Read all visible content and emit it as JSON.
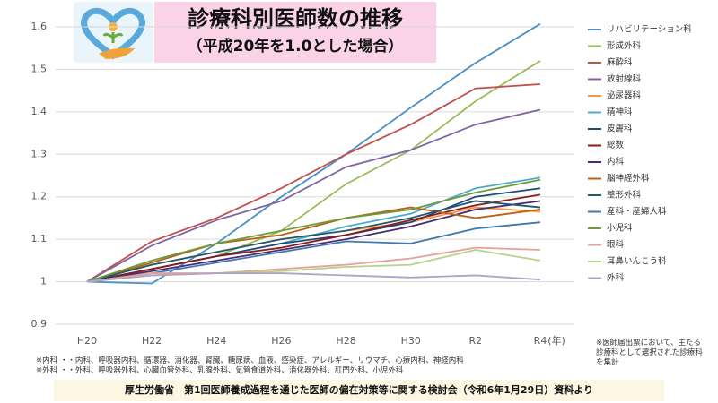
{
  "chart_data": {
    "type": "line",
    "title": "診療科別医師数の推移",
    "subtitle": "（平成20年を1.0とした場合）",
    "x_unit": "(年)",
    "source": "厚生労働省　第1回医師養成過程を通じた医師の偏在対策等に関する検討会（令和6年1月29日）資料より",
    "notes": [
      "※内科 ・・内科、呼吸器内科、循環器、消化器、腎臓、糖尿病、血液、感染症、アレルギー、リウマチ、心療内科、神経内科",
      "※外科 ・・外科、呼吸器外科、心臓血管外科、乳腺外科、気管食道外科、消化器外科、肛門外科、小児外科",
      "※医師届出票において、主たる診療科として選択された診療科を集計"
    ],
    "categories": [
      "H20",
      "H22",
      "H24",
      "H26",
      "H28",
      "H30",
      "R2",
      "R4"
    ],
    "ylim": [
      0.9,
      1.6
    ],
    "yticks": [
      0.9,
      1,
      1.1,
      1.2,
      1.3,
      1.4,
      1.5,
      1.6
    ],
    "grid": true,
    "legend": "right",
    "series": [
      {
        "name": "リハビリテーション科",
        "color": "#4a8fc9",
        "values": [
          1,
          0.996,
          1.09,
          1.2,
          1.3,
          1.41,
          1.515,
          1.607
        ]
      },
      {
        "name": "形成外科",
        "color": "#9bbb59",
        "values": [
          1,
          1.03,
          1.06,
          1.12,
          1.23,
          1.31,
          1.425,
          1.52
        ]
      },
      {
        "name": "麻酔科",
        "color": "#c0504d",
        "values": [
          1,
          1.095,
          1.15,
          1.22,
          1.3,
          1.37,
          1.455,
          1.465
        ]
      },
      {
        "name": "放射線科",
        "color": "#8064a2",
        "values": [
          1,
          1.085,
          1.145,
          1.19,
          1.27,
          1.31,
          1.37,
          1.405
        ]
      },
      {
        "name": "泌尿器科",
        "color": "#f79646",
        "values": [
          1,
          1.04,
          1.07,
          1.1,
          1.12,
          1.14,
          1.175,
          1.165
        ]
      },
      {
        "name": "精神科",
        "color": "#4bacc6",
        "values": [
          1,
          1.03,
          1.06,
          1.09,
          1.13,
          1.16,
          1.22,
          1.245
        ]
      },
      {
        "name": "皮膚科",
        "color": "#1f497d",
        "values": [
          1,
          1.03,
          1.06,
          1.09,
          1.11,
          1.14,
          1.2,
          1.22
        ]
      },
      {
        "name": "総数",
        "color": "#8b1a1a",
        "values": [
          1,
          1.03,
          1.06,
          1.08,
          1.11,
          1.145,
          1.18,
          1.205
        ]
      },
      {
        "name": "内科",
        "color": "#4b2c6f",
        "values": [
          1,
          1.025,
          1.05,
          1.075,
          1.1,
          1.13,
          1.17,
          1.19
        ]
      },
      {
        "name": "脳神経外科",
        "color": "#b8621a",
        "values": [
          1,
          1.045,
          1.09,
          1.11,
          1.15,
          1.175,
          1.15,
          1.17
        ]
      },
      {
        "name": "整形外科",
        "color": "#215a6d",
        "values": [
          1,
          1.04,
          1.07,
          1.1,
          1.12,
          1.15,
          1.19,
          1.175
        ]
      },
      {
        "name": "産科・産婦人科",
        "color": "#3f78b0",
        "values": [
          1,
          1.02,
          1.045,
          1.07,
          1.095,
          1.09,
          1.125,
          1.14
        ]
      },
      {
        "name": "小児科",
        "color": "#6f9a3a",
        "values": [
          1,
          1.05,
          1.09,
          1.12,
          1.15,
          1.17,
          1.21,
          1.24
        ]
      },
      {
        "name": "眼科",
        "color": "#e6a09b",
        "values": [
          1,
          1.02,
          1.02,
          1.03,
          1.04,
          1.055,
          1.08,
          1.075
        ]
      },
      {
        "name": "耳鼻いんこう科",
        "color": "#b5d48a",
        "values": [
          1,
          1.015,
          1.02,
          1.025,
          1.035,
          1.04,
          1.075,
          1.05
        ]
      },
      {
        "name": "外科",
        "color": "#b3a2c7",
        "values": [
          1,
          1.015,
          1.02,
          1.02,
          1.015,
          1.01,
          1.015,
          1.005
        ]
      }
    ]
  }
}
